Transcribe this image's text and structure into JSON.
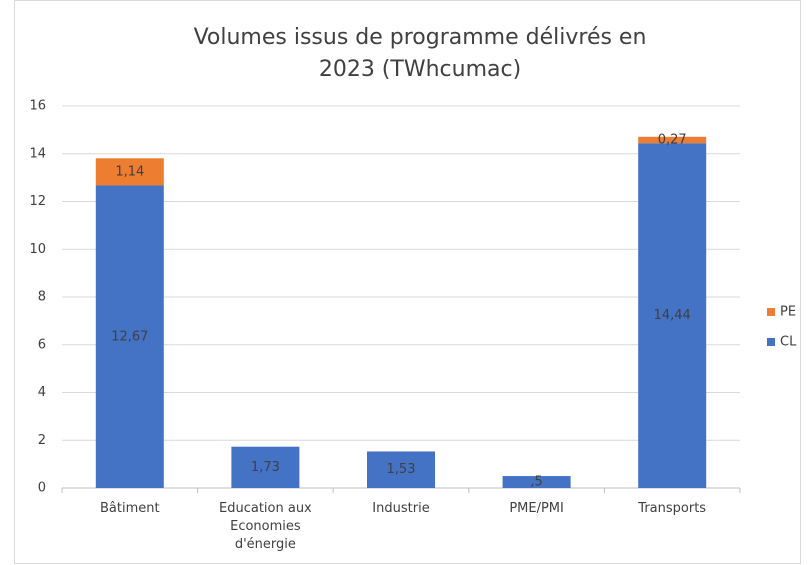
{
  "chart_data": {
    "type": "stacked_bar",
    "title": "Volumes issus de programme délivrés en 2023 (TWhcumac)",
    "categories": [
      "Bâtiment",
      "Education aux Economies d'énergie",
      "Industrie",
      "PME/PMI",
      "Transports"
    ],
    "series": [
      {
        "name": "CL",
        "color": "#4472c4",
        "values": [
          12.67,
          1.73,
          1.53,
          0.5,
          14.44
        ],
        "value_labels": [
          "12,67",
          "1,73",
          "1,53",
          ",5",
          "14,44"
        ]
      },
      {
        "name": "PE",
        "color": "#ed7d31",
        "values": [
          1.14,
          null,
          null,
          null,
          0.27
        ],
        "value_labels": [
          "1,14",
          null,
          null,
          null,
          "0,27"
        ]
      }
    ],
    "ylim": [
      0,
      16
    ],
    "yticks": [
      0,
      2,
      4,
      6,
      8,
      10,
      12,
      14,
      16
    ],
    "grid": true,
    "legend": "right"
  }
}
